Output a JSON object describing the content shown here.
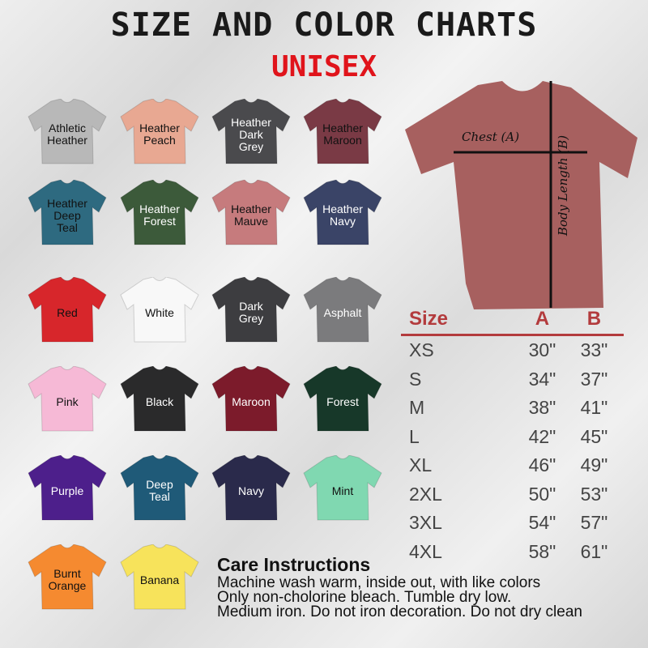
{
  "title": "SIZE AND COLOR CHARTS",
  "subtitle": "UNISEX",
  "colors": [
    {
      "name": "Athletic\nHeather",
      "hex": "#b8b8b8",
      "text": "#111"
    },
    {
      "name": "Heather\nPeach",
      "hex": "#e8a892",
      "text": "#111"
    },
    {
      "name": "Heather\nDark\nGrey",
      "hex": "#4a4a4d",
      "text": "#fff"
    },
    {
      "name": "Heather\nMaroon",
      "hex": "#7a3a45",
      "text": "#111"
    },
    {
      "name": "Heather\nDeep\nTeal",
      "hex": "#2e6a80",
      "text": "#111"
    },
    {
      "name": "Heather\nForest",
      "hex": "#3c5a3a",
      "text": "#fff"
    },
    {
      "name": "Heather\nMauve",
      "hex": "#c67b7d",
      "text": "#111"
    },
    {
      "name": "Heather\nNavy",
      "hex": "#3a4467",
      "text": "#fff"
    },
    {
      "name": "Red",
      "hex": "#d7262b",
      "text": "#111"
    },
    {
      "name": "White",
      "hex": "#f8f8f8",
      "text": "#111"
    },
    {
      "name": "Dark\nGrey",
      "hex": "#3d3d40",
      "text": "#fff"
    },
    {
      "name": "Asphalt",
      "hex": "#7b7b7d",
      "text": "#fff"
    },
    {
      "name": "Pink",
      "hex": "#f6b9d6",
      "text": "#111"
    },
    {
      "name": "Black",
      "hex": "#2a2a2b",
      "text": "#fff"
    },
    {
      "name": "Maroon",
      "hex": "#7c1b2b",
      "text": "#fff"
    },
    {
      "name": "Forest",
      "hex": "#173829",
      "text": "#fff"
    },
    {
      "name": "Purple",
      "hex": "#4d1f8b",
      "text": "#fff"
    },
    {
      "name": "Deep\nTeal",
      "hex": "#1f5a78",
      "text": "#fff"
    },
    {
      "name": "Navy",
      "hex": "#2a2a4b",
      "text": "#fff"
    },
    {
      "name": "Mint",
      "hex": "#80d8b1",
      "text": "#111"
    },
    {
      "name": "Burnt\nOrange",
      "hex": "#f58a30",
      "text": "#111"
    },
    {
      "name": "Banana",
      "hex": "#f7e35b",
      "text": "#111"
    }
  ],
  "diagram": {
    "chest": "Chest (A)",
    "length": "Body Length (B)",
    "shirt_color": "#a7605f"
  },
  "size_table": {
    "headers": [
      "Size",
      "A",
      "B"
    ],
    "rows": [
      [
        "XS",
        "30\"",
        "33\""
      ],
      [
        "S",
        "34\"",
        "37\""
      ],
      [
        "M",
        "38\"",
        "41\""
      ],
      [
        "L",
        "42\"",
        "45\""
      ],
      [
        "XL",
        "46\"",
        "49\""
      ],
      [
        "2XL",
        "50\"",
        "53\""
      ],
      [
        "3XL",
        "54\"",
        "57\""
      ],
      [
        "4XL",
        "58\"",
        "61\""
      ]
    ]
  },
  "care": {
    "title": "Care Instructions",
    "lines": [
      "Machine wash warm, inside out, with like colors",
      "Only non-cholorine bleach. Tumble dry low.",
      "Medium iron. Do not iron decoration. Do not dry clean"
    ]
  }
}
